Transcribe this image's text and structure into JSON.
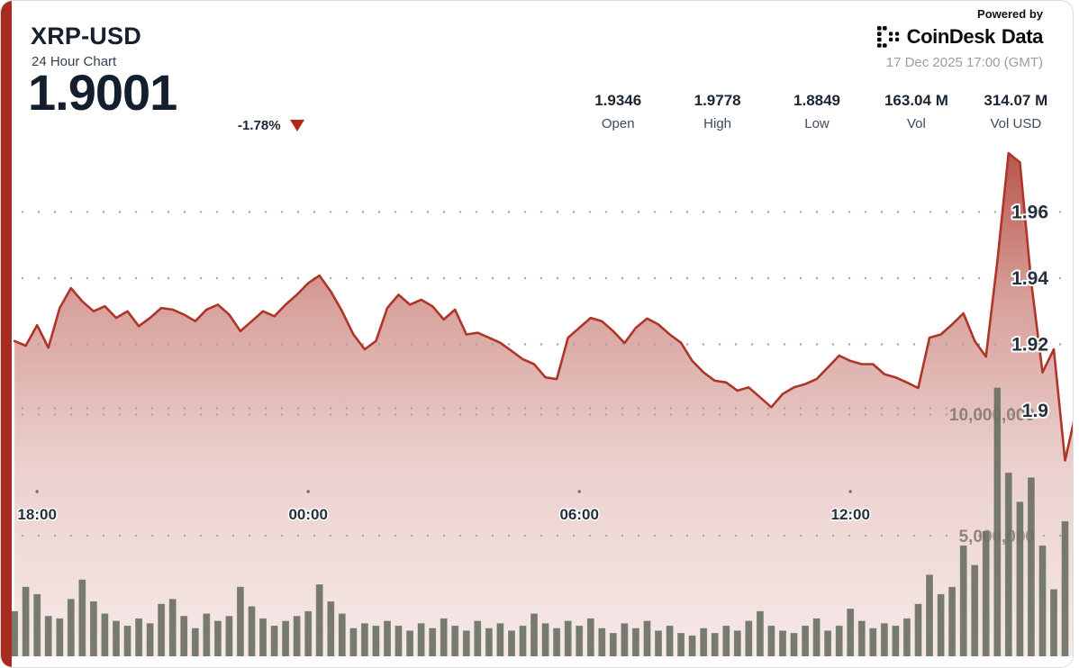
{
  "header": {
    "symbol": "XRP-USD",
    "subtitle": "24 Hour Chart",
    "price": "1.9001",
    "change": "-1.78%",
    "change_direction": "down"
  },
  "branding": {
    "powered_by": "Powered by",
    "brand_coindesk": "CoinDesk",
    "brand_data": "Data",
    "timestamp": "17 Dec 2025 17:00 (GMT)"
  },
  "stats": [
    {
      "value": "1.9346",
      "label": "Open"
    },
    {
      "value": "1.9778",
      "label": "High"
    },
    {
      "value": "1.8849",
      "label": "Low"
    },
    {
      "value": "163.04 M",
      "label": "Vol"
    },
    {
      "value": "314.07 M",
      "label": "Vol USD"
    }
  ],
  "colors": {
    "accent_red": "#a62c1f",
    "line_red": "#ae3528",
    "area_red": "#a62a1e",
    "volume_bar": "#6d7164",
    "navy_text": "#16212e",
    "grid_dot": "#98a0a8",
    "change_triangle": "#b1271b"
  },
  "chart_data": {
    "type": "line+bar",
    "title": "XRP-USD 24 Hour Chart",
    "timezone": "GMT",
    "time_start": "17:00",
    "time_end": "17:00 (+1 day)",
    "interval_minutes": 15,
    "summary": {
      "open": 1.9346,
      "high": 1.9778,
      "low": 1.8849,
      "close": 1.9001,
      "volume": "163.04 M",
      "volume_usd": "314.07 M"
    },
    "price_ylim": [
      1.88,
      1.985
    ],
    "volume_ylim_millions": [
      0,
      11.2
    ],
    "grid": "dotted",
    "price_points": [
      1.927,
      1.9245,
      1.921,
      1.9196,
      1.9258,
      1.919,
      1.931,
      1.937,
      1.933,
      1.93,
      1.9315,
      1.928,
      1.93,
      1.9255,
      1.928,
      1.931,
      1.9305,
      1.929,
      1.927,
      1.9305,
      1.932,
      1.929,
      1.924,
      1.927,
      1.93,
      1.9285,
      1.932,
      1.935,
      1.9385,
      1.9408,
      1.936,
      1.93,
      1.923,
      1.9185,
      1.921,
      1.931,
      1.935,
      1.932,
      1.9335,
      1.9315,
      1.9275,
      1.9305,
      1.923,
      1.9235,
      1.922,
      1.9205,
      1.918,
      1.9155,
      1.914,
      1.91,
      1.9095,
      1.922,
      1.925,
      1.928,
      1.927,
      1.924,
      1.9204,
      1.925,
      1.9278,
      1.926,
      1.923,
      1.9205,
      1.915,
      1.9115,
      1.909,
      1.9085,
      1.906,
      1.907,
      1.904,
      1.901,
      1.905,
      1.907,
      1.908,
      1.9095,
      1.913,
      1.9166,
      1.915,
      1.914,
      1.914,
      1.911,
      1.91,
      1.9085,
      1.9068,
      1.922,
      1.923,
      1.926,
      1.9294,
      1.921,
      1.9163,
      1.945,
      1.9778,
      1.975,
      1.939,
      1.9115,
      1.9185,
      1.8849,
      1.9001
    ],
    "volume_millions": [
      2.1,
      1.6,
      1.9,
      2.9,
      2.6,
      1.7,
      1.6,
      2.4,
      3.2,
      2.3,
      1.8,
      1.5,
      1.3,
      1.6,
      1.4,
      2.2,
      2.4,
      1.7,
      1.2,
      1.8,
      1.5,
      1.7,
      2.9,
      2.1,
      1.6,
      1.3,
      1.5,
      1.7,
      1.9,
      3.0,
      2.3,
      1.8,
      1.2,
      1.4,
      1.3,
      1.5,
      1.3,
      1.1,
      1.4,
      1.2,
      1.6,
      1.3,
      1.1,
      1.5,
      1.2,
      1.4,
      1.1,
      1.3,
      1.8,
      1.4,
      1.2,
      1.5,
      1.3,
      1.6,
      1.2,
      1.0,
      1.4,
      1.2,
      1.5,
      1.1,
      1.3,
      1.0,
      0.9,
      1.2,
      1.0,
      1.3,
      1.1,
      1.5,
      1.9,
      1.3,
      1.1,
      1.0,
      1.3,
      1.6,
      1.1,
      1.3,
      2.0,
      1.5,
      1.2,
      1.4,
      1.3,
      1.6,
      2.2,
      3.4,
      2.6,
      2.9,
      4.6,
      3.8,
      5.2,
      11.1,
      7.6,
      6.4,
      7.4,
      4.6,
      2.8,
      5.6
    ],
    "y_axis_price": [
      {
        "label": "1.96",
        "value": 1.96
      },
      {
        "label": "1.94",
        "value": 1.94
      },
      {
        "label": "1.92",
        "value": 1.92
      },
      {
        "label": "1.9",
        "value": 1.9
      }
    ],
    "y_axis_volume": [
      {
        "label": "10,000,000",
        "value_millions": 10
      },
      {
        "label": "5,000,000",
        "value_millions": 5
      }
    ],
    "x_axis": [
      {
        "label": "18:00",
        "hours_after_start": 1
      },
      {
        "label": "00:00",
        "hours_after_start": 7
      },
      {
        "label": "06:00",
        "hours_after_start": 13
      },
      {
        "label": "12:00",
        "hours_after_start": 19
      }
    ],
    "legend": "none"
  }
}
